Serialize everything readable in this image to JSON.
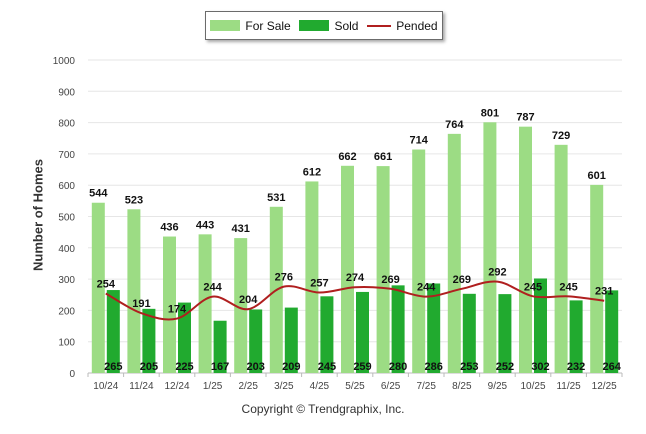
{
  "legend": {
    "for_sale": "For Sale",
    "sold": "Sold",
    "pended": "Pended"
  },
  "copyright": "Copyright © Trendgraphix, Inc.",
  "colors": {
    "for_sale": "#9cdc84",
    "sold": "#21aa2f",
    "pended": "#b01f1f",
    "grid": "#e6e6e6"
  },
  "chart_data": {
    "type": "bar",
    "xlabel": "",
    "ylabel": "Number of Homes",
    "ylim": [
      0,
      1000
    ],
    "yticks": [
      0,
      100,
      200,
      300,
      400,
      500,
      600,
      700,
      800,
      900,
      1000
    ],
    "grid": true,
    "legend_position": "top-center",
    "categories": [
      "10/24",
      "11/24",
      "12/24",
      "1/25",
      "2/25",
      "3/25",
      "4/25",
      "5/25",
      "6/25",
      "7/25",
      "8/25",
      "9/25",
      "10/25",
      "11/25",
      "12/25"
    ],
    "series": [
      {
        "name": "For Sale",
        "type": "bar",
        "values": [
          544,
          523,
          436,
          443,
          431,
          531,
          612,
          662,
          661,
          714,
          764,
          801,
          787,
          729,
          601
        ]
      },
      {
        "name": "Sold",
        "type": "bar",
        "values": [
          265,
          205,
          225,
          167,
          203,
          209,
          245,
          259,
          280,
          286,
          253,
          252,
          302,
          232,
          264
        ]
      },
      {
        "name": "Pended",
        "type": "line",
        "values": [
          254,
          191,
          174,
          244,
          204,
          276,
          257,
          274,
          269,
          244,
          269,
          292,
          245,
          245,
          231
        ]
      }
    ]
  }
}
